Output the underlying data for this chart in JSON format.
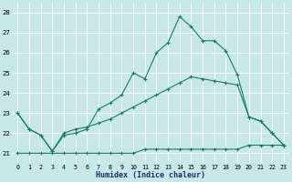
{
  "xlabel": "Humidex (Indice chaleur)",
  "bg_color": "#c8e8e8",
  "line_color": "#1a7a6e",
  "x": [
    0,
    1,
    2,
    3,
    4,
    5,
    6,
    7,
    8,
    9,
    10,
    11,
    12,
    13,
    14,
    15,
    16,
    17,
    18,
    19,
    20,
    21,
    22,
    23
  ],
  "y_top": [
    23.0,
    22.2,
    21.9,
    21.1,
    21.9,
    22.0,
    22.2,
    23.2,
    23.5,
    23.9,
    25.0,
    24.7,
    26.0,
    26.5,
    27.8,
    27.3,
    26.6,
    26.6,
    26.1,
    24.9,
    22.8,
    22.6,
    22.0,
    21.4
  ],
  "y_mid": [
    23.0,
    22.2,
    21.9,
    21.1,
    22.0,
    22.2,
    22.3,
    22.5,
    22.7,
    23.0,
    23.3,
    23.6,
    23.9,
    24.2,
    24.5,
    24.8,
    24.7,
    24.6,
    24.5,
    24.4,
    22.8,
    22.6,
    22.0,
    21.4
  ],
  "y_bot": [
    21.0,
    21.0,
    21.0,
    21.0,
    21.0,
    21.0,
    21.0,
    21.0,
    21.0,
    21.0,
    21.0,
    21.2,
    21.2,
    21.2,
    21.2,
    21.2,
    21.2,
    21.2,
    21.2,
    21.2,
    21.4,
    21.4,
    21.4,
    21.4
  ],
  "ylim": [
    20.5,
    28.5
  ],
  "yticks": [
    21,
    22,
    23,
    24,
    25,
    26,
    27,
    28
  ],
  "xticks": [
    0,
    1,
    2,
    3,
    4,
    5,
    6,
    7,
    8,
    9,
    10,
    11,
    12,
    13,
    14,
    15,
    16,
    17,
    18,
    19,
    20,
    21,
    22,
    23
  ]
}
